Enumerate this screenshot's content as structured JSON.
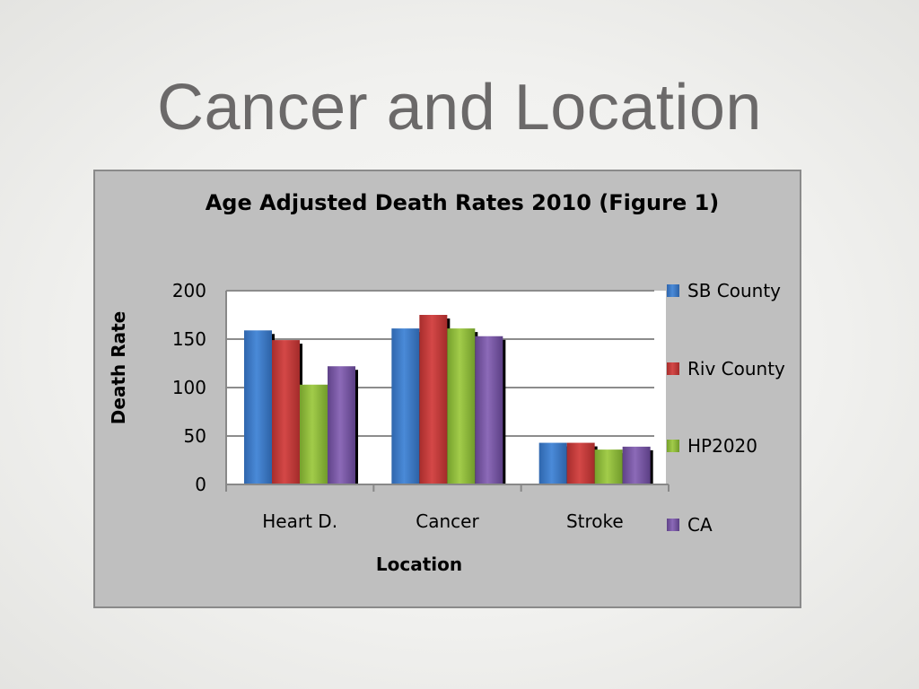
{
  "slide": {
    "title": "Cancer and Location"
  },
  "chart_data": {
    "type": "bar",
    "title": "Age Adjusted Death Rates 2010 (Figure 1)",
    "xlabel": "Location",
    "ylabel": "Death Rate",
    "categories": [
      "Heart D.",
      "Cancer",
      "Stroke"
    ],
    "ylim": [
      0,
      200
    ],
    "yticks": [
      "0",
      "50",
      "100",
      "150",
      "200"
    ],
    "grid": true,
    "legend_position": "right",
    "series": [
      {
        "name": "SB County",
        "values": [
          159,
          161,
          43
        ],
        "color": "#3d7cc9"
      },
      {
        "name": "Riv County",
        "values": [
          149,
          175,
          43
        ],
        "color": "#c43b3a"
      },
      {
        "name": "HP2020",
        "values": [
          103,
          161,
          36
        ],
        "color": "#8fba3a"
      },
      {
        "name": "CA",
        "values": [
          122,
          153,
          39
        ],
        "color": "#7a58a6"
      }
    ]
  }
}
